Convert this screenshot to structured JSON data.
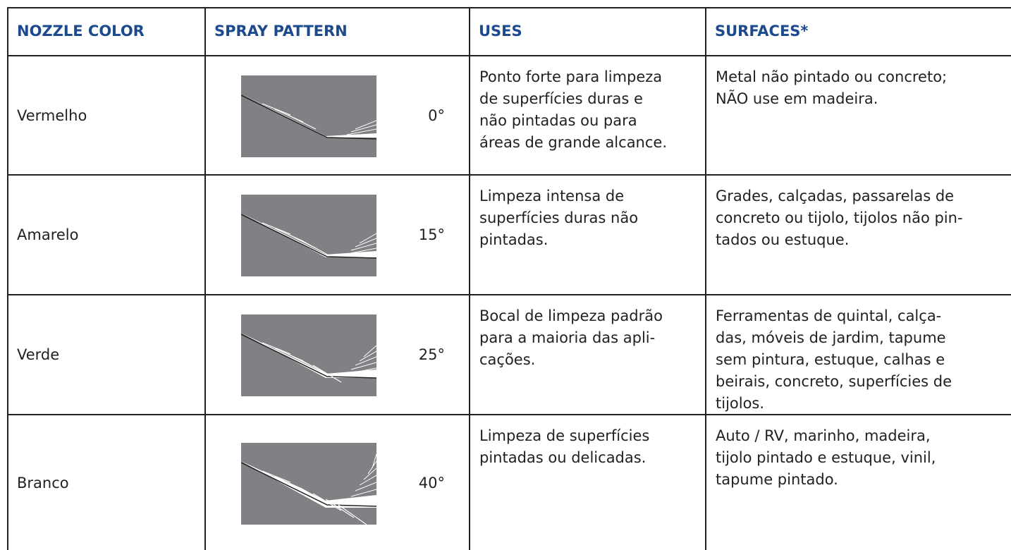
{
  "table": {
    "header": [
      "NOZZLE COLOR",
      "SPRAY PATTERN",
      "USES",
      "SURFACES*"
    ],
    "rows": [
      {
        "color": "Vermelho",
        "angle": "0°",
        "uses": [
          "Ponto forte para limpeza",
          "de superfícies duras e",
          "não pintadas ou para",
          "áreas de grande alcance."
        ],
        "surfaces": [
          "Metal não pintado ou concreto;",
          "NÃO use em madeira."
        ]
      },
      {
        "color": "Amarelo",
        "angle": "15°",
        "uses": [
          "Limpeza intensa de",
          "superfícies duras não",
          "pintadas."
        ],
        "surfaces": [
          "Grades, calçadas, passarelas de",
          "concreto ou tijolo, tijolos não pin-",
          "tados ou estuque."
        ]
      },
      {
        "color": "Verde",
        "angle": "25°",
        "uses": [
          "Bocal de limpeza padrão",
          "para a maioria das apli-",
          "cações."
        ],
        "surfaces": [
          "Ferramentas de quintal, calça-",
          "das, móveis de jardim, tapume",
          "sem pintura, estuque, calhas e",
          "beirais, concreto, superfícies de",
          "tijolos."
        ]
      },
      {
        "color": "Branco",
        "angle": "40°",
        "uses": [
          "Limpeza de superfícies",
          "pintadas ou delicadas."
        ],
        "surfaces": [
          "Auto / RV, marinho, madeira,",
          "tijolo pintado e estuque, vinil,",
          "tapume pintado."
        ]
      }
    ]
  }
}
